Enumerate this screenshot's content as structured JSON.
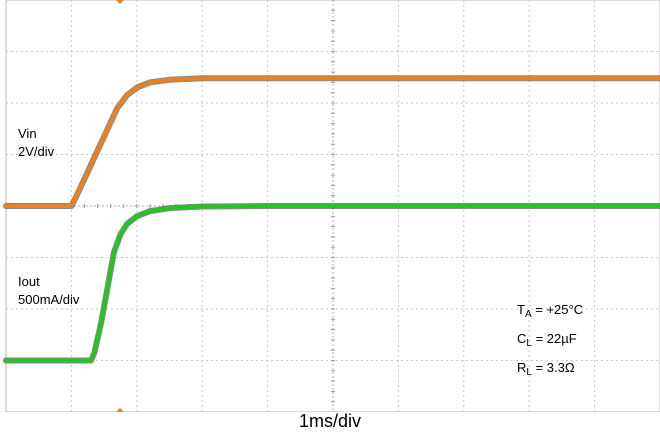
{
  "chart_data": {
    "type": "line",
    "title": "",
    "xlabel": "1ms/div",
    "ylabel": "",
    "x_unit": "div",
    "y_unit": "div",
    "xlim": [
      0,
      10
    ],
    "ylim": [
      -4,
      4
    ],
    "grid": true,
    "series": [
      {
        "name": "Vin",
        "scale": "2V/div",
        "color": "#e8821e",
        "x": [
          0,
          1.0,
          1.1,
          1.3,
          1.5,
          1.7,
          1.85,
          2.0,
          2.2,
          2.5,
          3.0,
          4.0,
          10
        ],
        "y": [
          0,
          0,
          0.25,
          0.8,
          1.35,
          1.9,
          2.15,
          2.3,
          2.4,
          2.45,
          2.48,
          2.48,
          2.48
        ]
      },
      {
        "name": "Iout",
        "scale": "500mA/div",
        "color": "#22c522",
        "x": [
          0,
          1.3,
          1.35,
          1.45,
          1.55,
          1.65,
          1.75,
          1.85,
          2.0,
          2.2,
          2.5,
          3.0,
          4.0,
          10
        ],
        "y": [
          -3.0,
          -3.0,
          -2.85,
          -2.3,
          -1.6,
          -0.9,
          -0.55,
          -0.35,
          -0.2,
          -0.1,
          -0.04,
          -0.01,
          0.0,
          0.0
        ]
      }
    ],
    "labels": {
      "vin_name": "Vin",
      "vin_scale": "2V/div",
      "iout_name": "Iout",
      "iout_scale": "500mA/div"
    },
    "conditions": {
      "ta_main": "T",
      "ta_sub": "A",
      "ta_value": " = +25°C",
      "cl_main": "C",
      "cl_sub": "L",
      "cl_value": " = 22µF",
      "rl_main": "R",
      "rl_sub": "L",
      "rl_value": " = 3.3Ω"
    },
    "timebase": "1ms/div"
  }
}
